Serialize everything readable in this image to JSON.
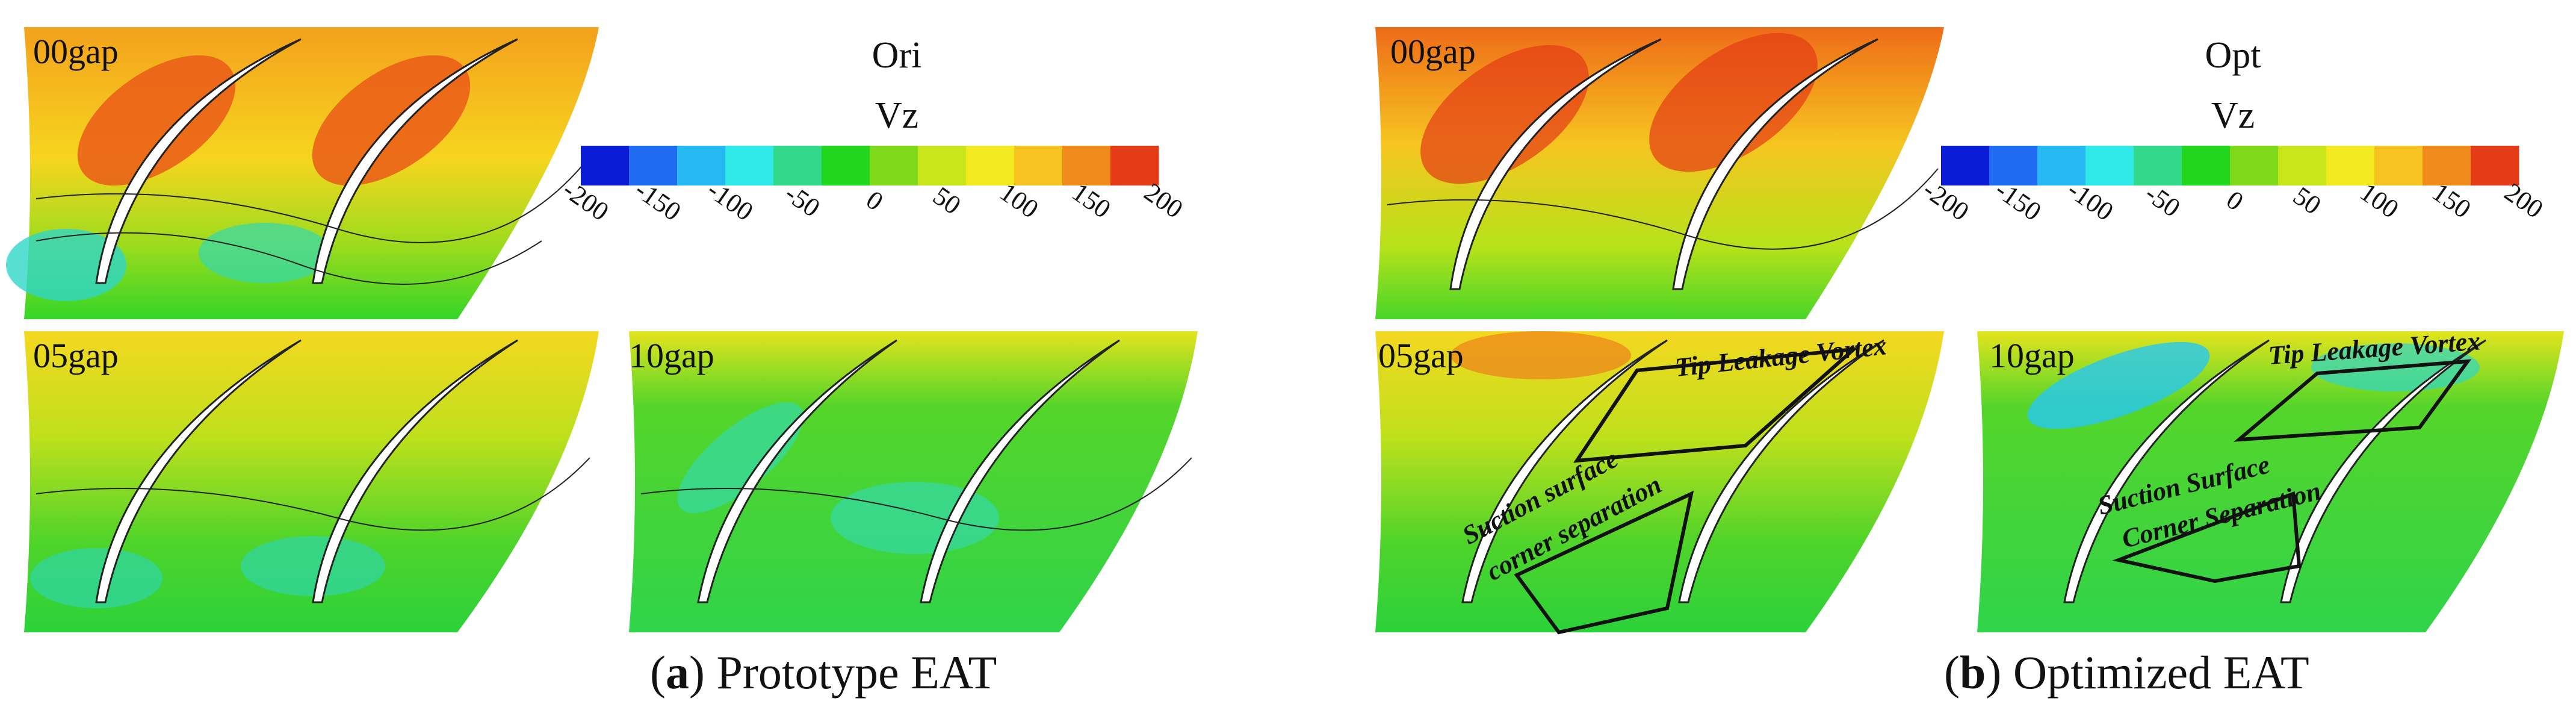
{
  "panels": [
    {
      "id": "a",
      "colorbar_title": "Ori",
      "variable": "Vz",
      "tick_labels": [
        "-200",
        "-150",
        "-100",
        "-50",
        "0",
        "50",
        "100",
        "150",
        "200"
      ],
      "plots": [
        {
          "label": "00gap",
          "annotations": []
        },
        {
          "label": "05gap",
          "annotations": []
        },
        {
          "label": "10gap",
          "annotations": []
        }
      ],
      "caption_letter": "a",
      "caption_text": " Prototype EAT"
    },
    {
      "id": "b",
      "colorbar_title": "Opt",
      "variable": "Vz",
      "tick_labels": [
        "-200",
        "-150",
        "-100",
        "-50",
        "0",
        "50",
        "100",
        "150",
        "200"
      ],
      "plots": [
        {
          "label": "00gap",
          "annotations": []
        },
        {
          "label": "05gap",
          "annotations": [
            "Tip Leakage Vortex",
            "Suction surface",
            "corner separation"
          ]
        },
        {
          "label": "10gap",
          "annotations": [
            "Tip Leakage Vortex",
            "Suction Surface",
            "Corner Separation"
          ]
        }
      ],
      "caption_letter": "b",
      "caption_text": " Optimized EAT"
    }
  ],
  "colors": {
    "colormap": [
      "#0a1cd6",
      "#1f6bf2",
      "#25b8f2",
      "#2fe8e8",
      "#33d98a",
      "#22d61e",
      "#7ed91a",
      "#c8e61a",
      "#f2ea1e",
      "#f6c320",
      "#f08a1a",
      "#e43a16"
    ]
  }
}
